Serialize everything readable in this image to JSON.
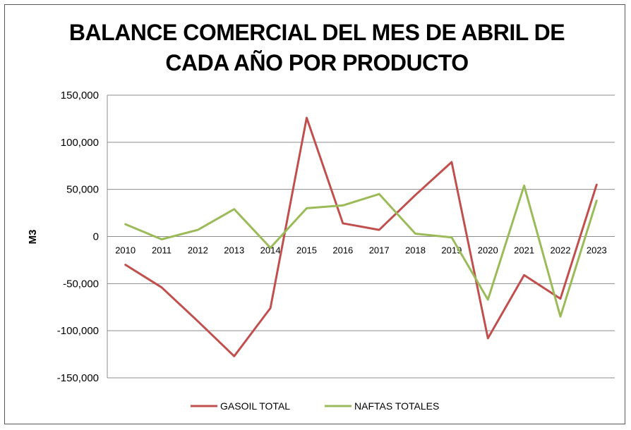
{
  "chart_data": {
    "type": "line",
    "title_lines": [
      "BALANCE COMERCIAL DEL MES DE ABRIL DE",
      "CADA AÑO POR PRODUCTO"
    ],
    "xlabel": "",
    "ylabel": "M3",
    "ylim": [
      -150000,
      150000
    ],
    "yticks": [
      150000,
      100000,
      50000,
      0,
      -50000,
      -100000,
      -150000
    ],
    "ytick_labels": [
      "150,000",
      "100,000",
      "50,000",
      "0",
      "-50,000",
      "-100,000",
      "-150,000"
    ],
    "grid": true,
    "legend_position": "bottom",
    "categories": [
      "2010",
      "2011",
      "2012",
      "2013",
      "2014",
      "2015",
      "2016",
      "2017",
      "2018",
      "2019",
      "2020",
      "2021",
      "2022",
      "2023"
    ],
    "series": [
      {
        "name": "GASOIL TOTAL",
        "color": "#c0504d",
        "values": [
          -30000,
          -54000,
          -90000,
          -127000,
          -76000,
          126000,
          14000,
          7000,
          44000,
          79000,
          -108000,
          -41000,
          -66000,
          55000
        ]
      },
      {
        "name": "NAFTAS TOTALES",
        "color": "#9bbb59",
        "values": [
          13000,
          -3000,
          7000,
          29000,
          -12000,
          30000,
          33000,
          45000,
          3000,
          -1000,
          -67000,
          54000,
          -85000,
          38000
        ]
      }
    ]
  }
}
